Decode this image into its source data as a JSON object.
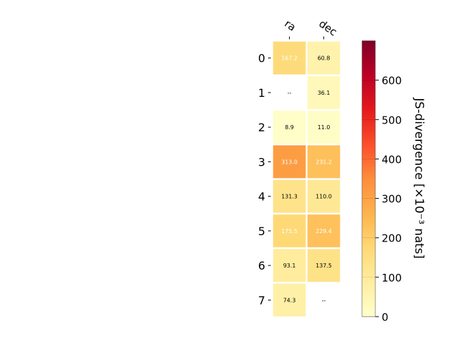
{
  "chart_data": {
    "type": "heatmap",
    "columns": [
      "ra",
      "dec"
    ],
    "rows": [
      "0",
      "1",
      "2",
      "3",
      "4",
      "5",
      "6",
      "7"
    ],
    "values": [
      [
        167.2,
        60.8
      ],
      [
        null,
        36.1
      ],
      [
        8.9,
        11.0
      ],
      [
        313.0,
        231.2
      ],
      [
        131.3,
        110.0
      ],
      [
        175.5,
        229.4
      ],
      [
        93.1,
        137.5
      ],
      [
        74.3,
        null
      ]
    ],
    "cell_labels": [
      [
        "167.2",
        "60.8"
      ],
      [
        "--",
        "36.1"
      ],
      [
        "8.9",
        "11.0"
      ],
      [
        "313.0",
        "231.2"
      ],
      [
        "131.3",
        "110.0"
      ],
      [
        "175.5",
        "229.4"
      ],
      [
        "93.1",
        "137.5"
      ],
      [
        "74.3",
        "--"
      ]
    ],
    "colorbar": {
      "label": "JS-divergence [×10⁻³ nats]",
      "range": [
        0,
        700
      ],
      "ticks": [
        "0",
        "100",
        "200",
        "300",
        "400",
        "500",
        "600"
      ],
      "colormap": "YlOrRd"
    },
    "colors": {
      "low": "#ffffcc",
      "high": "#800026",
      "cell_border": "#ffffff",
      "text_dark": "#000000",
      "text_light": "#ffffff"
    }
  }
}
